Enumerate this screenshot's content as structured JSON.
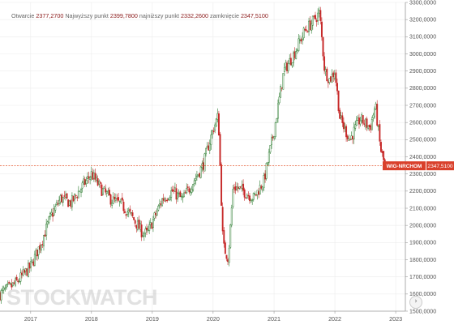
{
  "ohlc_bar": {
    "open_label": "Otwarcie",
    "open_value": "2377,2700",
    "high_label": "Najwyższy punkt",
    "high_value": "2399,7800",
    "low_label": "najniższy punkt",
    "low_value": "2332,2600",
    "close_label": "zamknięcie",
    "close_value": "2347,5100"
  },
  "watermark": "STOCKWATCH",
  "nav_icon": "chevron-right-icon",
  "colors": {
    "up": "#2e7d32",
    "down": "#c62828",
    "price_line": "#e4572e",
    "badge": "#d9402b"
  },
  "chart_data": {
    "type": "candlestick",
    "title": "",
    "xlabel": "",
    "ylabel": "",
    "ylim": [
      1500,
      3300
    ],
    "y_ticks": [
      "1500,0000",
      "1600,0000",
      "1700,0000",
      "1800,0000",
      "1900,0000",
      "2000,0000",
      "2100,0000",
      "2200,0000",
      "2300,0000",
      "2400,0000",
      "2500,0000",
      "2600,0000",
      "2700,0000",
      "2800,0000",
      "2900,0000",
      "3000,0000",
      "3100,0000",
      "3200,0000",
      "3300,0000"
    ],
    "x_ticks": [
      "2017",
      "2018",
      "2019",
      "2020",
      "2021",
      "2022",
      "2023"
    ],
    "grid": true,
    "last_price": {
      "label": "WIG-NRCHOM",
      "value": "2347,5100",
      "y": 2347.51
    },
    "series": [
      {
        "values": [
          [
            "2016-07",
            1600
          ],
          [
            "2016-10",
            1660
          ],
          [
            "2017-01",
            1760
          ],
          [
            "2017-03",
            1890
          ],
          [
            "2017-05",
            2050
          ],
          [
            "2017-07",
            2160
          ],
          [
            "2017-09",
            2130
          ],
          [
            "2017-11",
            2220
          ],
          [
            "2018-01",
            2300
          ],
          [
            "2018-03",
            2210
          ],
          [
            "2018-05",
            2150
          ],
          [
            "2018-07",
            2120
          ],
          [
            "2018-09",
            2050
          ],
          [
            "2018-11",
            1960
          ],
          [
            "2018-12",
            1950
          ],
          [
            "2019-03",
            2150
          ],
          [
            "2019-05",
            2200
          ],
          [
            "2019-07",
            2150
          ],
          [
            "2019-09",
            2250
          ],
          [
            "2019-11",
            2350
          ],
          [
            "2020-01",
            2560
          ],
          [
            "2020-02",
            2640
          ],
          [
            "2020-03",
            1880
          ],
          [
            "2020-04",
            1810
          ],
          [
            "2020-05",
            2230
          ],
          [
            "2020-07",
            2200
          ],
          [
            "2020-09",
            2160
          ],
          [
            "2020-11",
            2260
          ],
          [
            "2021-01",
            2550
          ],
          [
            "2021-03",
            2900
          ],
          [
            "2021-05",
            3000
          ],
          [
            "2021-07",
            3130
          ],
          [
            "2021-09",
            3200
          ],
          [
            "2021-10",
            3240
          ],
          [
            "2021-11",
            2900
          ],
          [
            "2021-12",
            2850
          ],
          [
            "2022-01",
            2900
          ],
          [
            "2022-02",
            2620
          ],
          [
            "2022-04",
            2500
          ],
          [
            "2022-06",
            2620
          ],
          [
            "2022-08",
            2570
          ],
          [
            "2022-09",
            2700
          ],
          [
            "2022-10",
            2450
          ],
          [
            "2022-10-28",
            2347.51
          ]
        ]
      }
    ]
  }
}
